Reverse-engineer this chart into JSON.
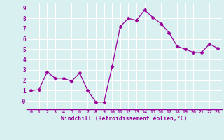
{
  "x": [
    0,
    1,
    2,
    3,
    4,
    5,
    6,
    7,
    8,
    9,
    10,
    11,
    12,
    13,
    14,
    15,
    16,
    17,
    18,
    19,
    20,
    21,
    22,
    23
  ],
  "y": [
    1.0,
    1.1,
    2.8,
    2.2,
    2.2,
    1.9,
    2.7,
    1.0,
    -0.1,
    -0.1,
    3.3,
    7.2,
    8.0,
    7.8,
    8.8,
    8.1,
    7.5,
    6.6,
    5.3,
    5.0,
    4.7,
    4.7,
    5.5,
    5.1
  ],
  "line_color": "#990099",
  "marker": "D",
  "marker_size": 2.5,
  "bg_color": "#d8f0f0",
  "grid_color": "#ffffff",
  "xlabel": "Windchill (Refroidissement éolien,°C)",
  "xlabel_color": "#990099",
  "tick_color": "#990099",
  "spine_color": "#990099",
  "ylim": [
    -0.8,
    9.5
  ],
  "xlim": [
    -0.5,
    23.5
  ],
  "yticks": [
    0,
    1,
    2,
    3,
    4,
    5,
    6,
    7,
    8,
    9
  ],
  "ytick_labels": [
    "-0",
    "1",
    "2",
    "3",
    "4",
    "5",
    "6",
    "7",
    "8",
    "9"
  ],
  "xticks": [
    0,
    1,
    2,
    3,
    4,
    5,
    6,
    7,
    8,
    9,
    10,
    11,
    12,
    13,
    14,
    15,
    16,
    17,
    18,
    19,
    20,
    21,
    22,
    23
  ]
}
